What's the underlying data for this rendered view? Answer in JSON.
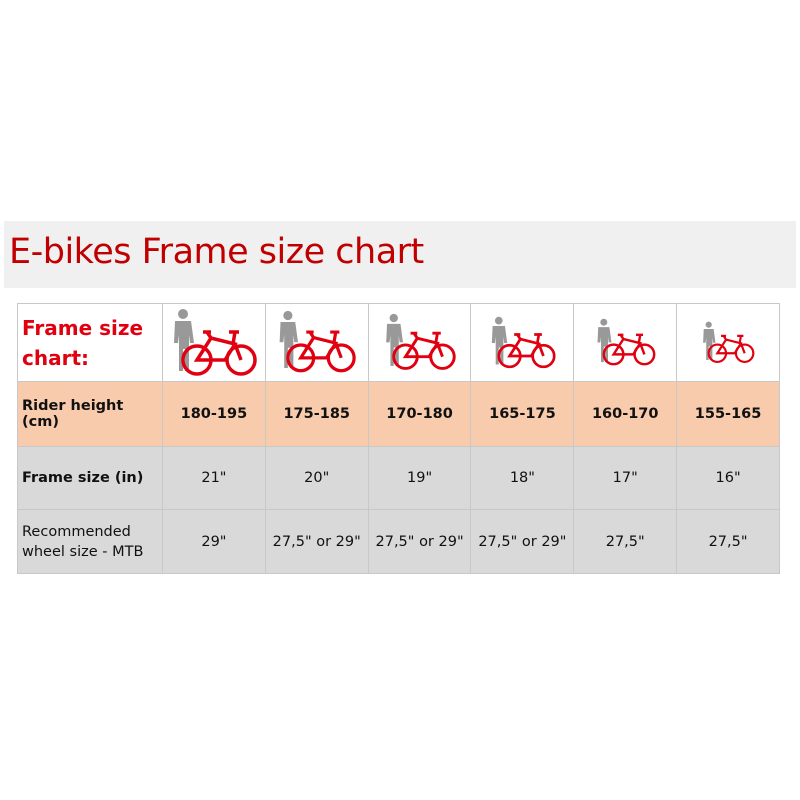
{
  "title": "E-bikes Frame size chart",
  "colors": {
    "accent": "#c00000",
    "rider_row": "#f8cbad",
    "grey_rows": "#d9d9d9",
    "bike": "#e00010",
    "person": "#999999"
  },
  "table": {
    "header_label": "Frame size chart:",
    "icons": [
      "person-with-bike-icon",
      "person-with-bike-icon",
      "person-with-bike-icon",
      "person-with-bike-icon",
      "person-with-bike-icon",
      "person-with-bike-icon"
    ],
    "rows": [
      {
        "label": "Rider height (cm)",
        "values": [
          "180-195",
          "175-185",
          "170-180",
          "165-175",
          "160-170",
          "155-165"
        ]
      },
      {
        "label": "Frame size (in)",
        "values": [
          "21\"",
          "20\"",
          "19\"",
          "18\"",
          "17\"",
          "16\""
        ]
      },
      {
        "label": "Recommended wheel size - MTB",
        "values": [
          "29\"",
          "27,5\" or 29\"",
          "27,5\" or 29\"",
          "27,5\" or 29\"",
          "27,5\"",
          "27,5\""
        ]
      }
    ]
  }
}
